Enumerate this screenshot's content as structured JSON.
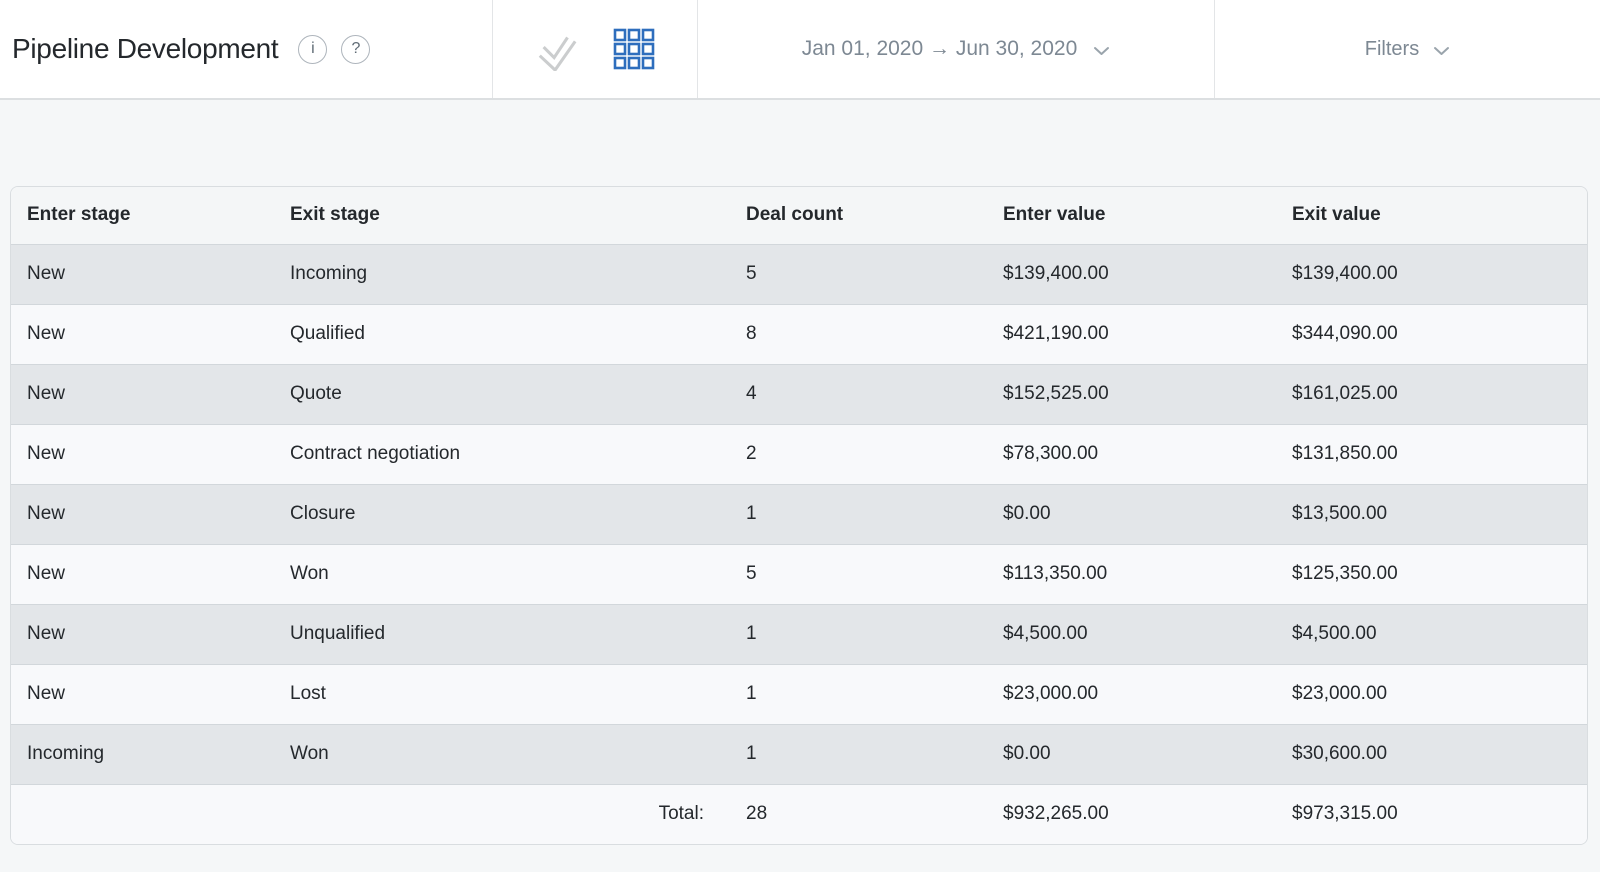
{
  "header": {
    "title": "Pipeline Development",
    "info_glyph": "i",
    "help_glyph": "?",
    "view_toggles": {
      "chart_view_icon": "line-chart-icon",
      "table_view_icon": "grid-icon",
      "active_view": "table"
    },
    "date_range": "Jan 01, 2020 → Jun 30, 2020",
    "filters_label": "Filters"
  },
  "table": {
    "columns": [
      "Enter stage",
      "Exit stage",
      "Deal count",
      "Enter value",
      "Exit value"
    ],
    "rows": [
      [
        "New",
        "Incoming",
        "5",
        "$139,400.00",
        "$139,400.00"
      ],
      [
        "New",
        "Qualified",
        "8",
        "$421,190.00",
        "$344,090.00"
      ],
      [
        "New",
        "Quote",
        "4",
        "$152,525.00",
        "$161,025.00"
      ],
      [
        "New",
        "Contract negotiation",
        "2",
        "$78,300.00",
        "$131,850.00"
      ],
      [
        "New",
        "Closure",
        "1",
        "$0.00",
        "$13,500.00"
      ],
      [
        "New",
        "Won",
        "5",
        "$113,350.00",
        "$125,350.00"
      ],
      [
        "New",
        "Unqualified",
        "1",
        "$4,500.00",
        "$4,500.00"
      ],
      [
        "New",
        "Lost",
        "1",
        "$23,000.00",
        "$23,000.00"
      ],
      [
        "Incoming",
        "Won",
        "1",
        "$0.00",
        "$30,600.00"
      ]
    ],
    "total": {
      "label": "Total:",
      "deal_count": "28",
      "enter_value": "$932,265.00",
      "exit_value": "$973,315.00"
    }
  },
  "colors": {
    "accent_blue": "#2e6ebd",
    "inactive_icon_gray": "#cbcdce",
    "row_alt_gray": "#e3e6e9",
    "row_alt_light": "#f8f9fb",
    "text_dark": "#24282c",
    "text_muted": "#7d8893",
    "page_background": "#f5f7f8"
  }
}
